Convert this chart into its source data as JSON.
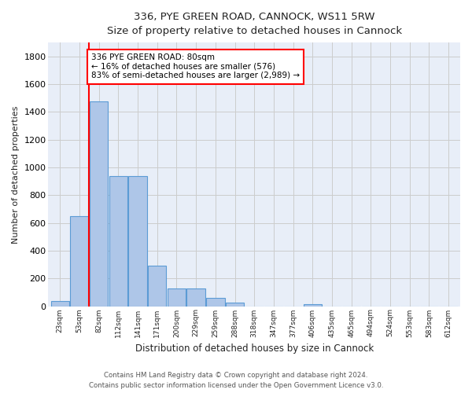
{
  "title_line1": "336, PYE GREEN ROAD, CANNOCK, WS11 5RW",
  "title_line2": "Size of property relative to detached houses in Cannock",
  "xlabel": "Distribution of detached houses by size in Cannock",
  "ylabel": "Number of detached properties",
  "bar_labels": [
    "23sqm",
    "53sqm",
    "82sqm",
    "112sqm",
    "141sqm",
    "171sqm",
    "200sqm",
    "229sqm",
    "259sqm",
    "288sqm",
    "318sqm",
    "347sqm",
    "377sqm",
    "406sqm",
    "435sqm",
    "465sqm",
    "494sqm",
    "524sqm",
    "553sqm",
    "583sqm",
    "612sqm"
  ],
  "bar_values": [
    38,
    650,
    1475,
    935,
    935,
    290,
    125,
    125,
    60,
    25,
    0,
    0,
    0,
    15,
    0,
    0,
    0,
    0,
    0,
    0,
    0
  ],
  "bar_color": "#aec6e8",
  "bar_edge_color": "#5b9bd5",
  "background_color": "#ffffff",
  "grid_color": "#cccccc",
  "vline_color": "#ff0000",
  "annotation_text": "336 PYE GREEN ROAD: 80sqm\n← 16% of detached houses are smaller (576)\n83% of semi-detached houses are larger (2,989) →",
  "annotation_box_color": "#ff0000",
  "annotation_bg": "#ffffff",
  "ax_facecolor": "#e8eef8",
  "ylim": [
    0,
    1900
  ],
  "yticks": [
    0,
    200,
    400,
    600,
    800,
    1000,
    1200,
    1400,
    1600,
    1800
  ],
  "footer_line1": "Contains HM Land Registry data © Crown copyright and database right 2024.",
  "footer_line2": "Contains public sector information licensed under the Open Government Licence v3.0."
}
